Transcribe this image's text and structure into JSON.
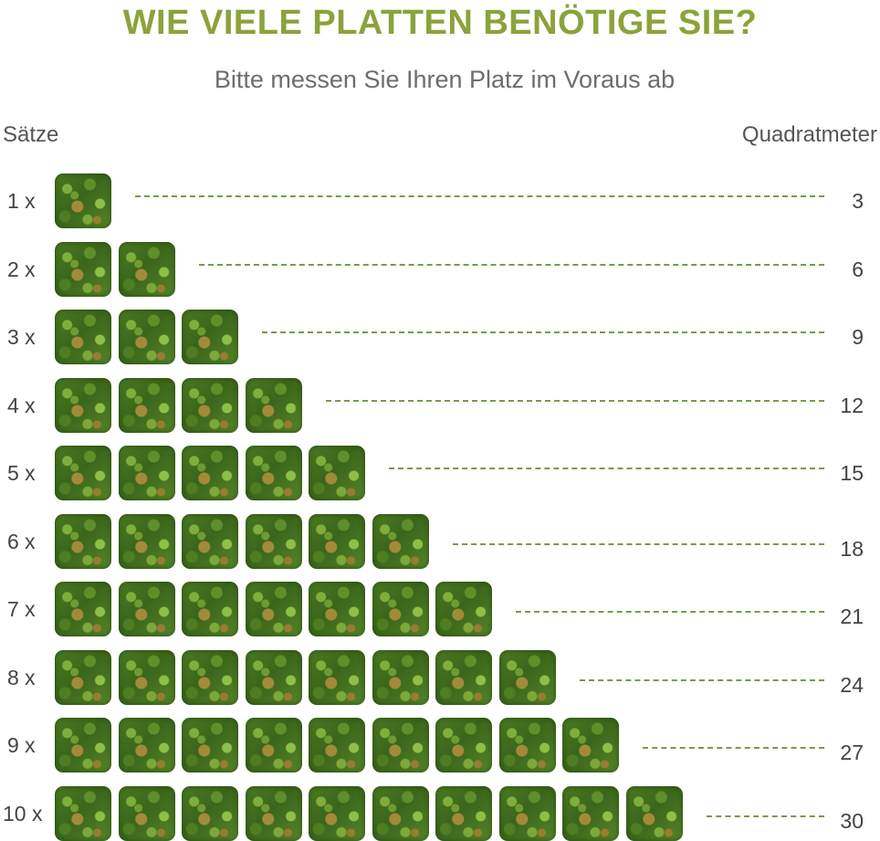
{
  "header": {
    "title": "WIE VIELE PLATTEN BENÖTIGE SIE?",
    "subtitle": "Bitte messen Sie Ihren Platz im Voraus ab"
  },
  "columns": {
    "left": "Sätze",
    "right": "Quadratmeter"
  },
  "rows": [
    {
      "label": "1 x",
      "count": 1,
      "value": "3"
    },
    {
      "label": "2 x",
      "count": 2,
      "value": "6"
    },
    {
      "label": "3 x",
      "count": 3,
      "value": "9"
    },
    {
      "label": "4 x",
      "count": 4,
      "value": "12"
    },
    {
      "label": "5 x",
      "count": 5,
      "value": "15"
    },
    {
      "label": "6 x",
      "count": 6,
      "value": "18"
    },
    {
      "label": "7 x",
      "count": 7,
      "value": "21"
    },
    {
      "label": "8 x",
      "count": 8,
      "value": "24"
    },
    {
      "label": "9 x",
      "count": 9,
      "value": "27"
    },
    {
      "label": "10 x",
      "count": 10,
      "value": "30"
    }
  ],
  "colors": {
    "title": "#8aa33a",
    "dash": "#7a9a4a"
  }
}
